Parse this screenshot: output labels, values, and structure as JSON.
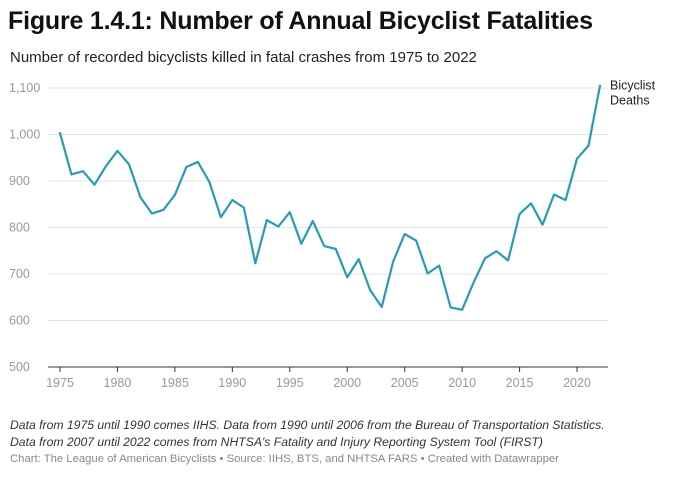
{
  "header": {
    "title": "Figure 1.4.1: Number of Annual Bicyclist Fatalities",
    "subtitle": "Number of recorded bicyclists killed in fatal crashes from 1975 to 2022"
  },
  "footer": {
    "note_line1": "Data from 1975 until 1990 comes IIHS. Data from 1990 until 2006 from the Bureau of Transportation Statistics.",
    "note_line2": "Data from 2007 until 2022 comes from NHTSA's Fatality and Injury Reporting System Tool (FIRST)",
    "source": "Chart: The League of American Bicyclists • Source: IIHS, BTS, and NHTSA FARS • Created with Datawrapper"
  },
  "colors": {
    "line": "#2a9bb5",
    "grid": "#e4e4e4",
    "axis": "#333333",
    "tick_label": "#999999"
  },
  "chart_data": {
    "type": "line",
    "title": "Figure 1.4.1: Number of Annual Bicyclist Fatalities",
    "subtitle": "Number of recorded bicyclists killed in fatal crashes from 1975 to 2022",
    "xlim": [
      1975,
      2022
    ],
    "ylim": [
      500,
      1100
    ],
    "y_ticks": [
      500,
      600,
      700,
      800,
      900,
      1000,
      1100
    ],
    "y_tick_labels": [
      "500",
      "600",
      "700",
      "800",
      "900",
      "1,000",
      "1,100"
    ],
    "x_ticks": [
      1975,
      1980,
      1985,
      1990,
      1995,
      2000,
      2005,
      2010,
      2015,
      2020
    ],
    "x_tick_labels": [
      "1975",
      "1980",
      "1985",
      "1990",
      "1995",
      "2000",
      "2005",
      "2010",
      "2015",
      "2020"
    ],
    "grid": "horizontal",
    "series": [
      {
        "name": "Bicyclist Deaths",
        "label_lines": [
          "Bicyclist",
          "Deaths"
        ],
        "x": [
          1975,
          1976,
          1977,
          1978,
          1979,
          1980,
          1981,
          1982,
          1983,
          1984,
          1985,
          1986,
          1987,
          1988,
          1989,
          1990,
          1991,
          1992,
          1993,
          1994,
          1995,
          1996,
          1997,
          1998,
          1999,
          2000,
          2001,
          2002,
          2003,
          2004,
          2005,
          2006,
          2007,
          2008,
          2009,
          2010,
          2011,
          2012,
          2013,
          2014,
          2015,
          2016,
          2017,
          2018,
          2019,
          2020,
          2021,
          2022
        ],
        "values": [
          1003,
          914,
          921,
          892,
          932,
          965,
          936,
          865,
          830,
          838,
          870,
          930,
          941,
          898,
          822,
          859,
          843,
          723,
          816,
          802,
          833,
          765,
          814,
          760,
          754,
          693,
          732,
          665,
          629,
          727,
          786,
          772,
          701,
          718,
          628,
          623,
          682,
          734,
          749,
          729,
          829,
          852,
          806,
          871,
          859,
          948,
          976,
          1105
        ]
      }
    ]
  }
}
